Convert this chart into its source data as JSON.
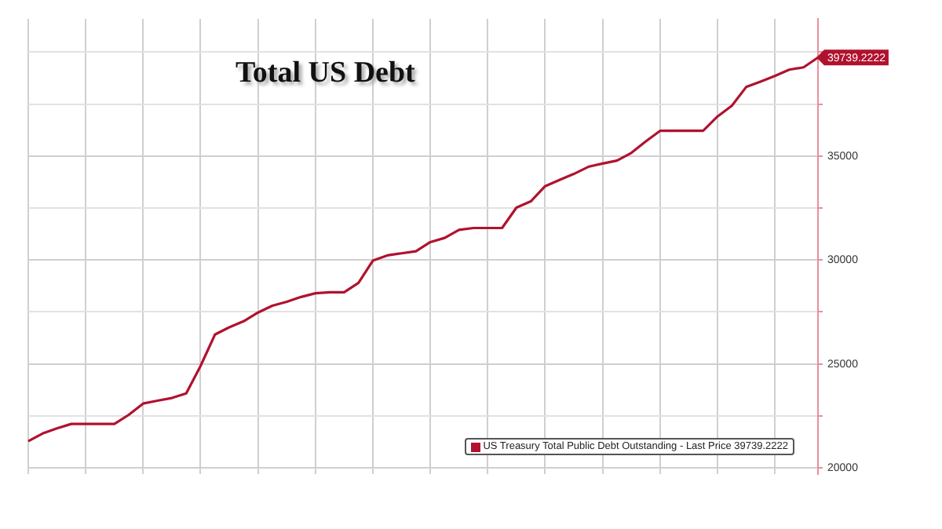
{
  "chart_data": {
    "type": "line",
    "title": "Total US Debt",
    "categories": [
      null,
      null,
      null,
      null,
      null,
      null,
      null,
      null,
      null,
      null,
      null,
      null,
      null,
      null,
      null,
      null,
      null,
      null,
      null,
      null,
      null,
      null,
      null,
      null,
      null,
      null,
      null,
      null,
      null,
      null,
      null,
      null,
      null,
      null,
      null,
      null,
      null,
      null,
      null,
      null,
      null,
      null,
      null,
      null,
      null,
      null,
      null,
      null,
      null,
      null,
      null,
      null,
      null,
      null,
      null,
      null
    ],
    "series": [
      {
        "name": "US Treasury Total Public Debt Outstanding - Last Price 39739.2222",
        "color": "#b0122e",
        "values": [
          21282,
          21650,
          21900,
          22111,
          22111,
          22111,
          22111,
          22550,
          23092,
          23230,
          23360,
          23580,
          24900,
          26410,
          26760,
          27050,
          27470,
          27800,
          27990,
          28220,
          28400,
          28446,
          28446,
          28898,
          29970,
          30220,
          30320,
          30420,
          30859,
          31060,
          31450,
          31538,
          31538,
          31538,
          32520,
          32820,
          33550,
          33850,
          34140,
          34480,
          34640,
          34780,
          35150,
          35700,
          36213,
          36213,
          36213,
          36213,
          36900,
          37420,
          38320,
          38580,
          38850,
          39154,
          39270,
          39739.2222
        ],
        "value_labels": [
          null,
          null,
          null,
          null,
          null,
          null,
          null,
          null,
          null,
          null,
          null,
          null,
          null,
          null,
          null,
          null,
          null,
          null,
          null,
          null,
          null,
          null,
          null,
          null,
          null,
          null,
          null,
          null,
          null,
          null,
          null,
          null,
          null,
          null,
          null,
          null,
          null,
          null,
          null,
          null,
          null,
          null,
          null,
          null,
          null,
          null,
          null,
          null,
          null,
          null,
          null,
          null,
          null,
          null,
          null,
          "39739.2222"
        ]
      }
    ],
    "ylim": [
      19700,
      41600
    ],
    "yticks": [
      20000,
      {
        "value": 22500,
        "label": null
      },
      25000,
      {
        "value": 27500,
        "label": null
      },
      30000,
      {
        "value": 32500,
        "label": null
      },
      35000,
      {
        "value": 37500,
        "label": null
      },
      {
        "value": 40000,
        "label": null
      }
    ],
    "tick_labels": "y",
    "grid": true,
    "legend": "bottom right",
    "marker": "none",
    "line_style": "solid"
  }
}
